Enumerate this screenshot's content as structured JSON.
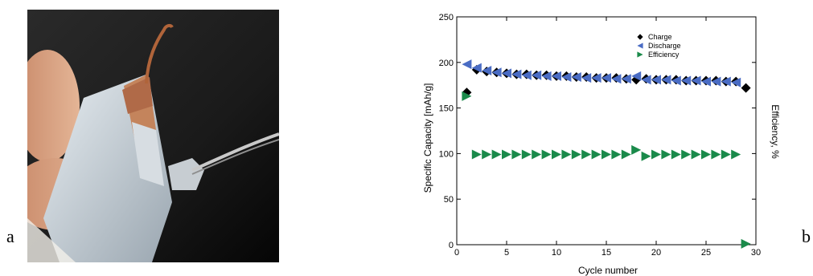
{
  "panels": {
    "a": "a",
    "b": "b"
  },
  "photo": {
    "description_icon": "photo-icon"
  },
  "chart_data": {
    "type": "scatter",
    "title": "",
    "xlabel": "Cycle number",
    "ylabel": "Specific Capacity [mAh/g]",
    "y2label": "Efficiency, %",
    "xlim": [
      0,
      30
    ],
    "ylim": [
      0,
      250
    ],
    "y2lim": [
      0,
      250
    ],
    "xticks": [
      0,
      5,
      10,
      15,
      20,
      25,
      30
    ],
    "yticks": [
      0,
      50,
      100,
      150,
      200,
      250
    ],
    "grid": false,
    "legend_position": "top-right",
    "series": [
      {
        "name": "Charge",
        "marker": "diamond",
        "color": "#000000",
        "x": [
          1,
          2,
          3,
          4,
          5,
          6,
          7,
          8,
          9,
          10,
          11,
          12,
          13,
          14,
          15,
          16,
          17,
          18,
          19,
          20,
          21,
          22,
          23,
          24,
          25,
          26,
          27,
          28,
          29
        ],
        "y": [
          167,
          192,
          190,
          189,
          188,
          187,
          187,
          186,
          186,
          185,
          185,
          184,
          184,
          183,
          183,
          183,
          182,
          181,
          182,
          181,
          181,
          181,
          180,
          180,
          180,
          180,
          179,
          179,
          172
        ]
      },
      {
        "name": "Discharge",
        "marker": "triangle-left",
        "color": "#4a6cc4",
        "x": [
          1,
          2,
          3,
          4,
          5,
          6,
          7,
          8,
          9,
          10,
          11,
          12,
          13,
          14,
          15,
          16,
          17,
          18,
          19,
          20,
          21,
          22,
          23,
          24,
          25,
          26,
          27,
          28
        ],
        "y": [
          198,
          194,
          191,
          189,
          188,
          187,
          186,
          186,
          185,
          185,
          184,
          184,
          183,
          183,
          183,
          182,
          182,
          185,
          181,
          181,
          181,
          180,
          180,
          180,
          179,
          179,
          179,
          178
        ]
      },
      {
        "name": "Efficiency",
        "marker": "triangle-right",
        "color": "#1a8a4a",
        "x": [
          1,
          2,
          3,
          4,
          5,
          6,
          7,
          8,
          9,
          10,
          11,
          12,
          13,
          14,
          15,
          16,
          17,
          18,
          19,
          20,
          21,
          22,
          23,
          24,
          25,
          26,
          27,
          28,
          29
        ],
        "y": [
          163,
          99,
          99,
          99,
          99,
          99,
          99,
          99,
          99,
          99,
          99,
          99,
          99,
          99,
          99,
          99,
          99,
          104,
          97,
          99,
          99,
          99,
          99,
          99,
          99,
          99,
          99,
          99,
          1
        ]
      }
    ]
  }
}
